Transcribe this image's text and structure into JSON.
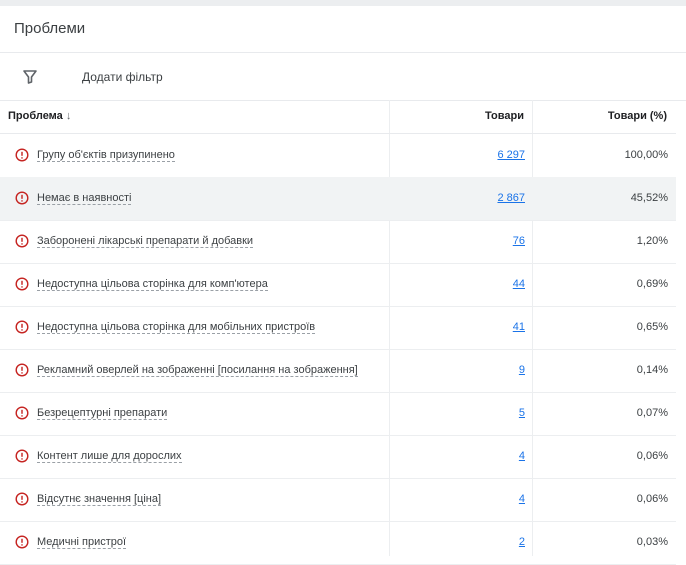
{
  "header": {
    "title": "Проблеми"
  },
  "filter": {
    "label": "Додати фільтр"
  },
  "table": {
    "columns": [
      "Проблема",
      "Товари",
      "Товари (%)"
    ],
    "rows": [
      [
        "Групу об'єктів призупинено",
        "6 297",
        "100,00%"
      ],
      [
        "Немає в наявності",
        "2 867",
        "45,52%"
      ],
      [
        "Заборонені лікарські препарати й добавки",
        "76",
        "1,20%"
      ],
      [
        "Недоступна цільова сторінка для комп'ютера",
        "44",
        "0,69%"
      ],
      [
        "Недоступна цільова сторінка для мобільних пристроїв",
        "41",
        "0,65%"
      ],
      [
        "Рекламний оверлей на зображенні [посилання на зображення]",
        "9",
        "0,14%"
      ],
      [
        "Безрецептурні препарати",
        "5",
        "0,07%"
      ],
      [
        "Контент лише для дорослих",
        "4",
        "0,06%"
      ],
      [
        "Відсутнє значення [ціна]",
        "4",
        "0,06%"
      ],
      [
        "Медичні пристрої",
        "2",
        "0,03%"
      ]
    ]
  }
}
